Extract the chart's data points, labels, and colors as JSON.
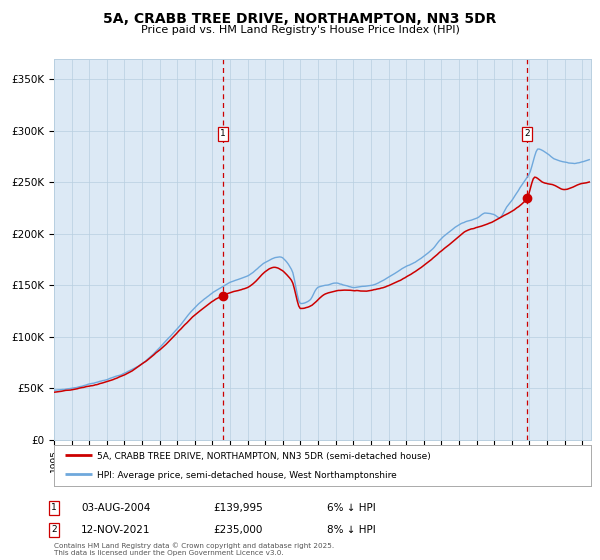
{
  "title": "5A, CRABB TREE DRIVE, NORTHAMPTON, NN3 5DR",
  "subtitle": "Price paid vs. HM Land Registry's House Price Index (HPI)",
  "bg_color": "#dce9f5",
  "hpi_color": "#6fa8dc",
  "price_color": "#cc0000",
  "vline_color": "#cc0000",
  "grid_color": "#b8cfe0",
  "ylim": [
    0,
    370000
  ],
  "yticks": [
    0,
    50000,
    100000,
    150000,
    200000,
    250000,
    300000,
    350000
  ],
  "ytick_labels": [
    "£0",
    "£50K",
    "£100K",
    "£150K",
    "£200K",
    "£250K",
    "£300K",
    "£350K"
  ],
  "sale1_year": 2004.583,
  "sale1_price": 139995,
  "sale2_year": 2021.875,
  "sale2_price": 235000,
  "sale1_label": "03-AUG-2004",
  "sale1_price_label": "£139,995",
  "sale1_diff": "6% ↓ HPI",
  "sale2_label": "12-NOV-2021",
  "sale2_price_label": "£235,000",
  "sale2_diff": "8% ↓ HPI",
  "legend_line1": "5A, CRABB TREE DRIVE, NORTHAMPTON, NN3 5DR (semi-detached house)",
  "legend_line2": "HPI: Average price, semi-detached house, West Northamptonshire",
  "footer": "Contains HM Land Registry data © Crown copyright and database right 2025.\nThis data is licensed under the Open Government Licence v3.0."
}
